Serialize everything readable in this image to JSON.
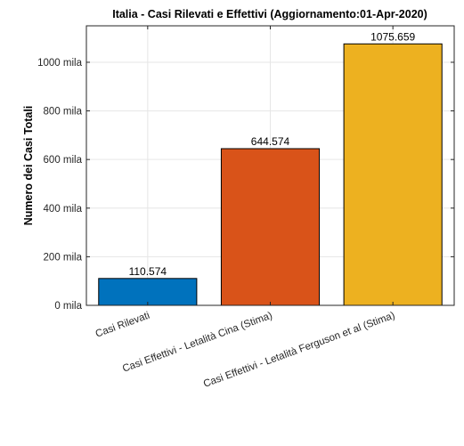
{
  "chart_data": {
    "type": "bar",
    "title": "Italia - Casi Rilevati e Effettivi (Aggiornamento:01-Apr-2020)",
    "xlabel": "",
    "ylabel": "Numero dei Casi Totali",
    "categories": [
      "Casi Rilevati",
      "Casi Effettivi - Letalità Cina (Stima)",
      "Casi Effettivi - Letalità Ferguson et al (Stima)"
    ],
    "values": [
      110.574,
      644.574,
      1075.659
    ],
    "value_labels": [
      "110.574",
      "644.574",
      "1075.659"
    ],
    "colors": [
      "#0072bd",
      "#d95319",
      "#edb120"
    ],
    "ylim": [
      0,
      1150
    ],
    "yticks": [
      0,
      200,
      400,
      600,
      800,
      1000
    ],
    "ytick_labels": [
      "0 mila",
      "200 mila",
      "400 mila",
      "600 mila",
      "800 mila",
      "1000 mila"
    ],
    "grid": true,
    "legend": "none"
  }
}
